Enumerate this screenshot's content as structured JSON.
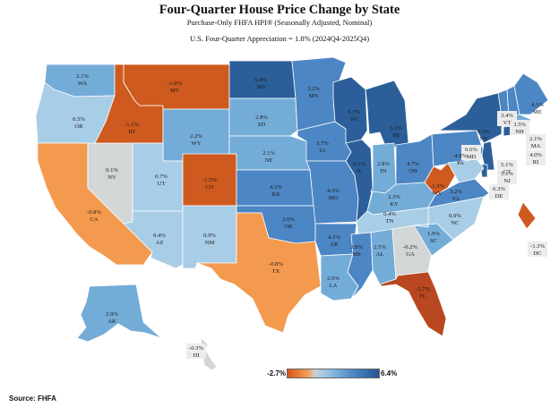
{
  "title": "Four-Quarter House Price Change by State",
  "subtitle": "Purchase-Only FHFA HPI® (Seasonally Adjusted, Nominal)",
  "note": "U.S. Four-Quarter Appreciation = 1.8% (2024Q4-2025Q4)",
  "legend": {
    "min_label": "-2.7%",
    "max_label": "6.4%"
  },
  "source": "Source:   FHFA",
  "colors": {
    "strong_negative": "#cf5a1f",
    "negative": "#f39a4f",
    "near_zero": "#d3d6d6",
    "small_positive": "#a8cde6",
    "moderate_positive": "#74acd8",
    "positive": "#4d86c4",
    "high_positive": "#2c5f99",
    "extreme_negative": "#b9471f"
  },
  "states": {
    "WA": "2.1%",
    "OR": "0.5%",
    "CA": "-0.8%",
    "NV": "0.1%",
    "ID": "-1.1%",
    "MT": "-1.9%",
    "WY": "2.2%",
    "UT": "0.7%",
    "AZ": "0.4%",
    "CO": "-1.5%",
    "NM": "0.9%",
    "ND": "6.4%",
    "SD": "2.8%",
    "NE": "2.1%",
    "KS": "4.1%",
    "OK": "3.0%",
    "TX": "-0.8%",
    "MN": "3.2%",
    "IA": "3.7%",
    "MO": "4.3%",
    "AR": "4.1%",
    "LA": "2.6%",
    "WI": "5.7%",
    "IL": "6.1%",
    "MI": "5.5%",
    "IN": "2.8%",
    "OH": "4.7%",
    "KY": "2.3%",
    "TN": "0.4%",
    "MS": "3.8%",
    "AL": "2.5%",
    "GA": "-0.2%",
    "FL": "-2.7%",
    "SC": "1.9%",
    "NC": "0.9%",
    "VA": "3.2%",
    "WV": "-1.3%",
    "PA": "4.0%",
    "NY": "5.3%",
    "VT": "3.4%",
    "NH": "3.5%",
    "ME": "4.1%",
    "MA": "2.1%",
    "RI": "4.0%",
    "CT": "5.1%",
    "NJ": "5.1%",
    "DE": "6.3%",
    "MD": "0.6%",
    "DC": "-1.3%",
    "AK": "2.9%",
    "HI": "-0.3%"
  }
}
